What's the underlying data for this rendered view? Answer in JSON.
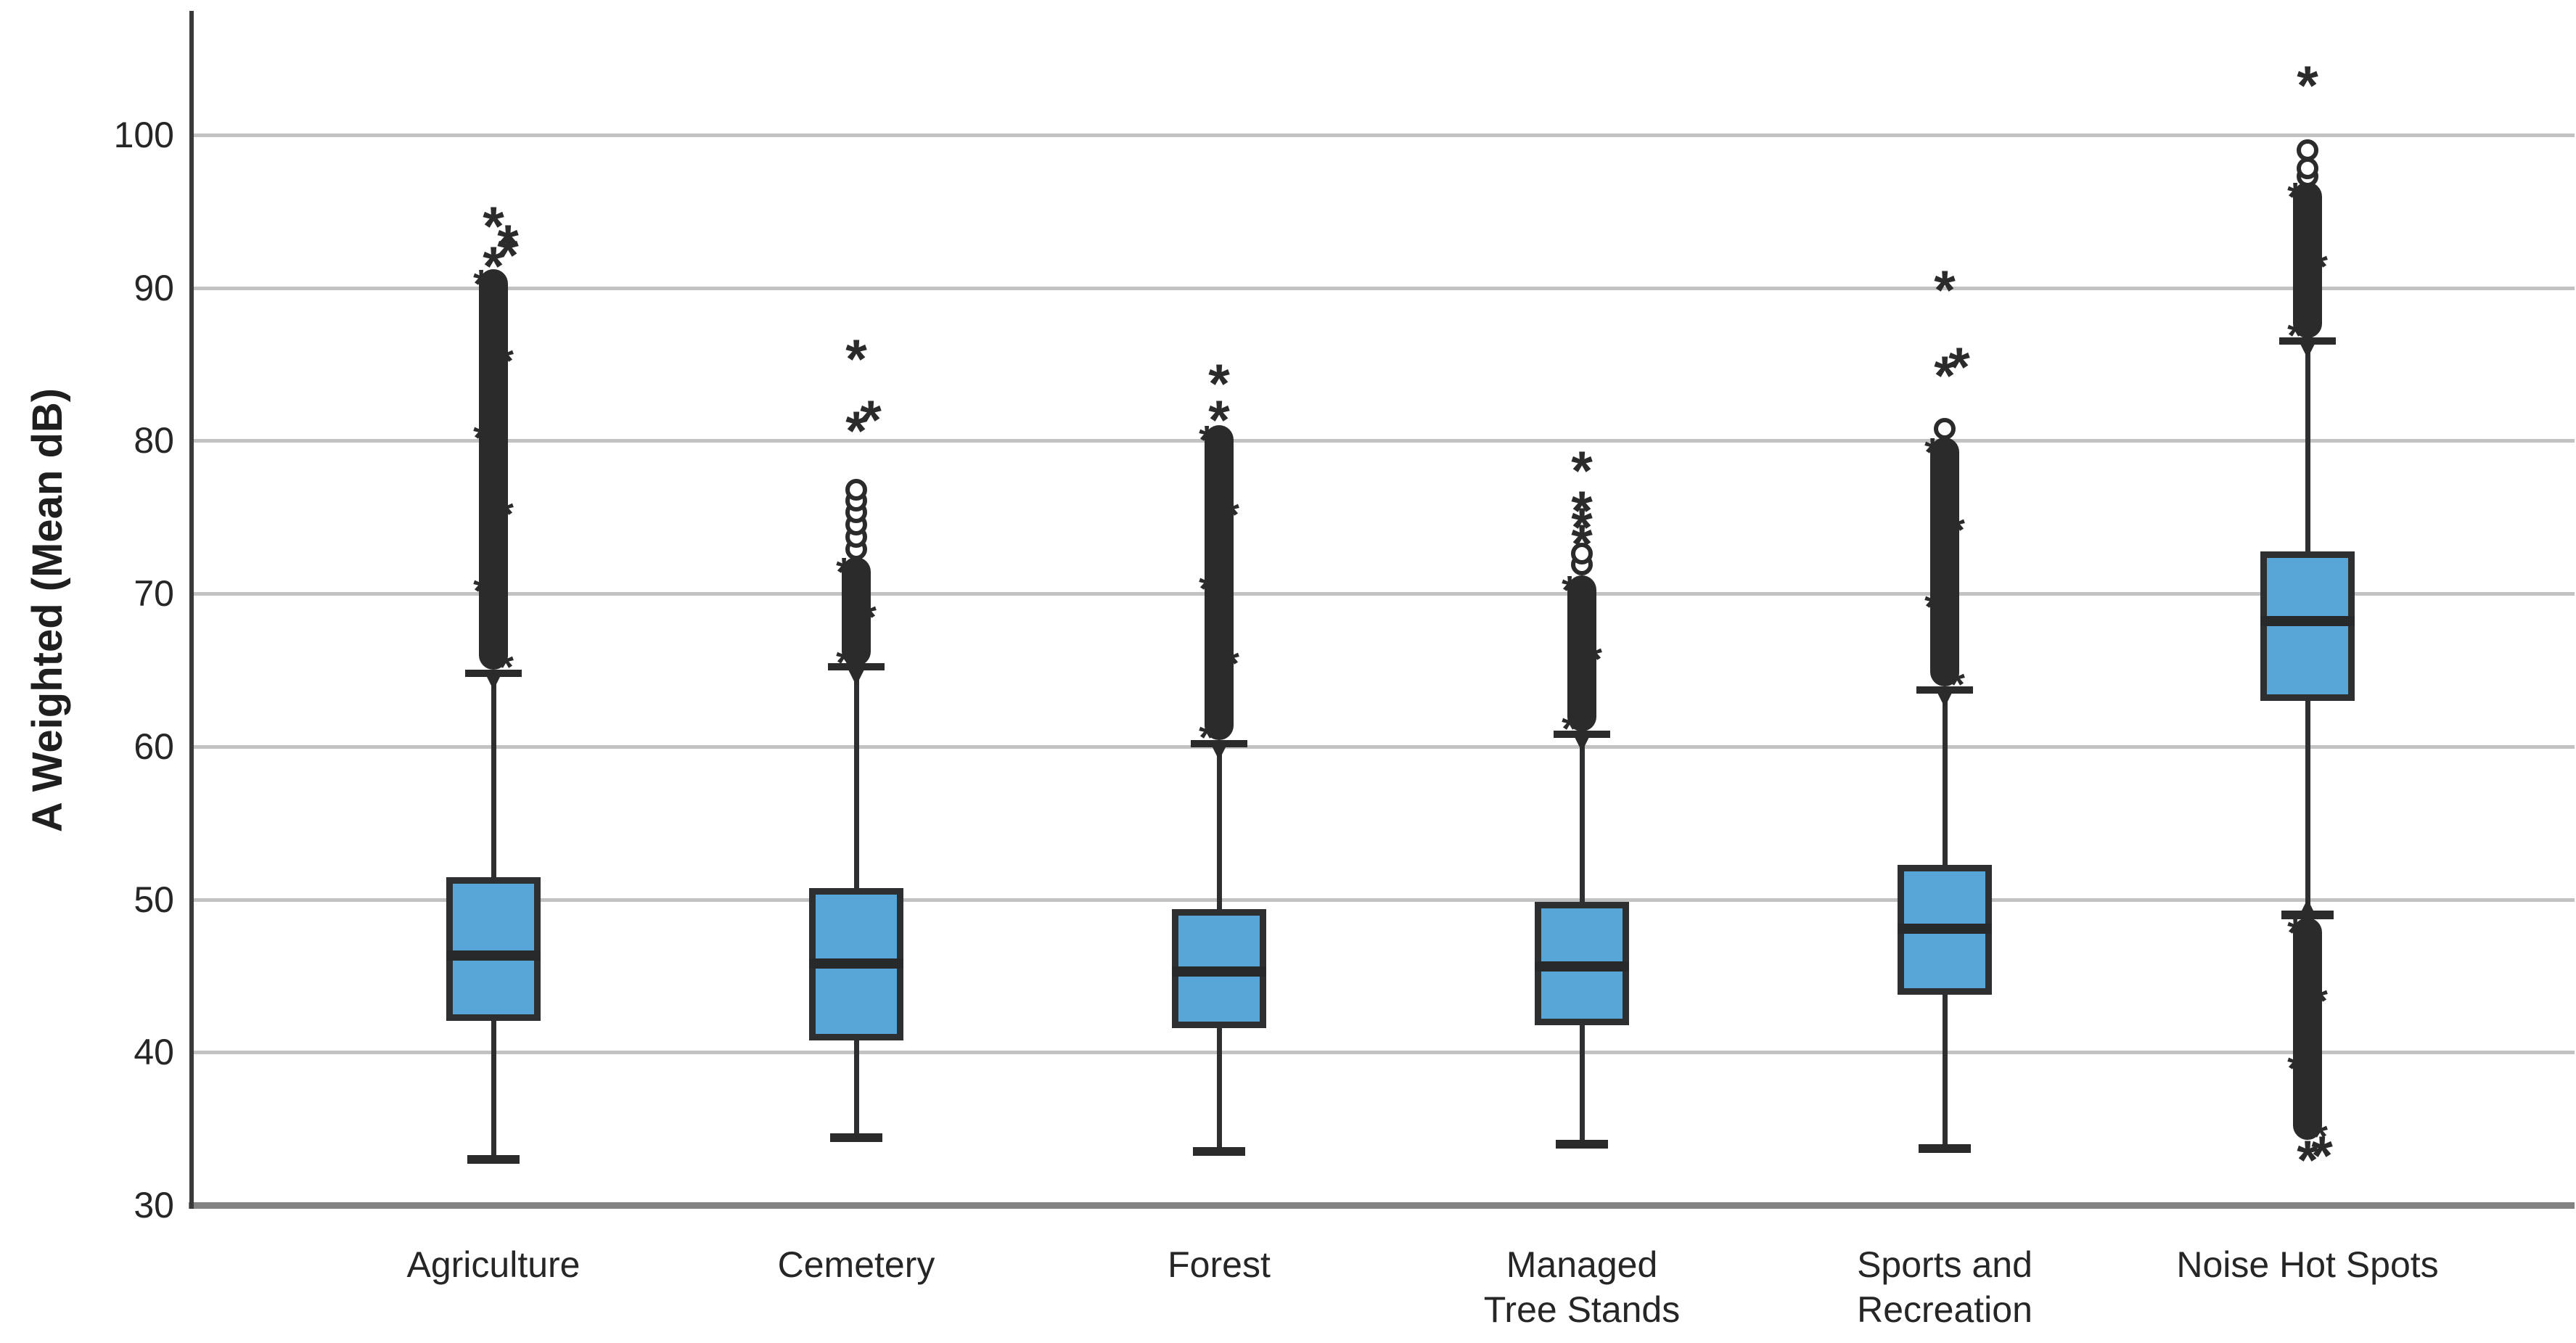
{
  "figure": {
    "background": "#FFFFFF"
  },
  "y_axis": {
    "label": "A Weighted (Mean dB)",
    "ticks": [
      100,
      90,
      80,
      70,
      60,
      50,
      40,
      30
    ],
    "range": [
      30,
      100
    ]
  },
  "chart_data": {
    "type": "boxplot",
    "title": "",
    "xlabel": "",
    "ylabel": "A Weighted (Mean dB)",
    "ylim": [
      30,
      100
    ],
    "yticks": [
      100,
      90,
      80,
      70,
      60,
      50,
      40,
      30
    ],
    "grid": "horizontal",
    "legend": "none",
    "categories": [
      "Agriculture",
      "Cemetery",
      "Forest",
      "Managed Tree Stands",
      "Sports and Recreation",
      "Noise Hot Spots"
    ],
    "series": [
      {
        "name": "Agriculture",
        "label_lines": [
          "Agriculture"
        ],
        "whisker_low": 33.0,
        "q1": 42.3,
        "median": 46.3,
        "q3": 51.2,
        "whisker_high": 64.8,
        "dense_outlier_ranges": [
          [
            65.0,
            91.2
          ]
        ],
        "circle_outliers": [],
        "star_outliers": [
          91.9,
          92.6,
          93.3,
          94.5
        ]
      },
      {
        "name": "Cemetery",
        "label_lines": [
          "Cemetery"
        ],
        "whisker_low": 34.4,
        "q1": 41.0,
        "median": 45.8,
        "q3": 50.5,
        "whisker_high": 65.2,
        "dense_outlier_ranges": [
          [
            65.3,
            72.4
          ]
        ],
        "circle_outliers": [
          72.9,
          73.7,
          74.5,
          75.3,
          76.1,
          76.8
        ],
        "star_outliers": [
          81.1,
          81.8,
          85.8
        ]
      },
      {
        "name": "Forest",
        "label_lines": [
          "Forest"
        ],
        "whisker_low": 33.5,
        "q1": 41.8,
        "median": 45.3,
        "q3": 49.1,
        "whisker_high": 60.2,
        "dense_outlier_ranges": [
          [
            60.4,
            81.0
          ]
        ],
        "circle_outliers": [],
        "star_outliers": [
          81.8,
          84.2
        ]
      },
      {
        "name": "Managed Tree Stands",
        "label_lines": [
          "Managed",
          "Tree Stands"
        ],
        "whisker_low": 34.0,
        "q1": 42.0,
        "median": 45.6,
        "q3": 49.6,
        "whisker_high": 60.8,
        "dense_outlier_ranges": [
          [
            61.0,
            71.2
          ]
        ],
        "circle_outliers": [
          71.9,
          72.6
        ],
        "star_outliers": [
          73.7,
          74.8,
          75.9,
          78.5
        ]
      },
      {
        "name": "Sports and Recreation",
        "label_lines": [
          "Sports and",
          "Recreation"
        ],
        "whisker_low": 33.7,
        "q1": 44.0,
        "median": 48.1,
        "q3": 52.0,
        "whisker_high": 63.7,
        "dense_outlier_ranges": [
          [
            63.9,
            80.2
          ]
        ],
        "circle_outliers": [
          80.8
        ],
        "star_outliers": [
          84.7,
          85.3,
          90.3
        ]
      },
      {
        "name": "Noise Hot Spots",
        "label_lines": [
          "Noise Hot Spots"
        ],
        "whisker_low": 49.0,
        "q1": 63.2,
        "median": 68.2,
        "q3": 72.5,
        "whisker_high": 86.5,
        "dense_outlier_ranges": [
          [
            86.7,
            96.9
          ],
          [
            34.3,
            48.8
          ]
        ],
        "circle_outliers": [
          97.3,
          97.8,
          99.0
        ],
        "star_outliers": [
          103.7,
          33.4,
          33.7
        ]
      }
    ]
  },
  "style": {
    "box_fill": "#58A5D8",
    "box_border": "#2D2F31",
    "median_color": "#27292B",
    "outlier_color": "#2B2B2B",
    "gridline_color": "#C2C2C2",
    "axis_line_color": "#3A3A3A",
    "baseline_color": "#828282",
    "text_color": "#262626",
    "background": "#FFFFFF"
  }
}
